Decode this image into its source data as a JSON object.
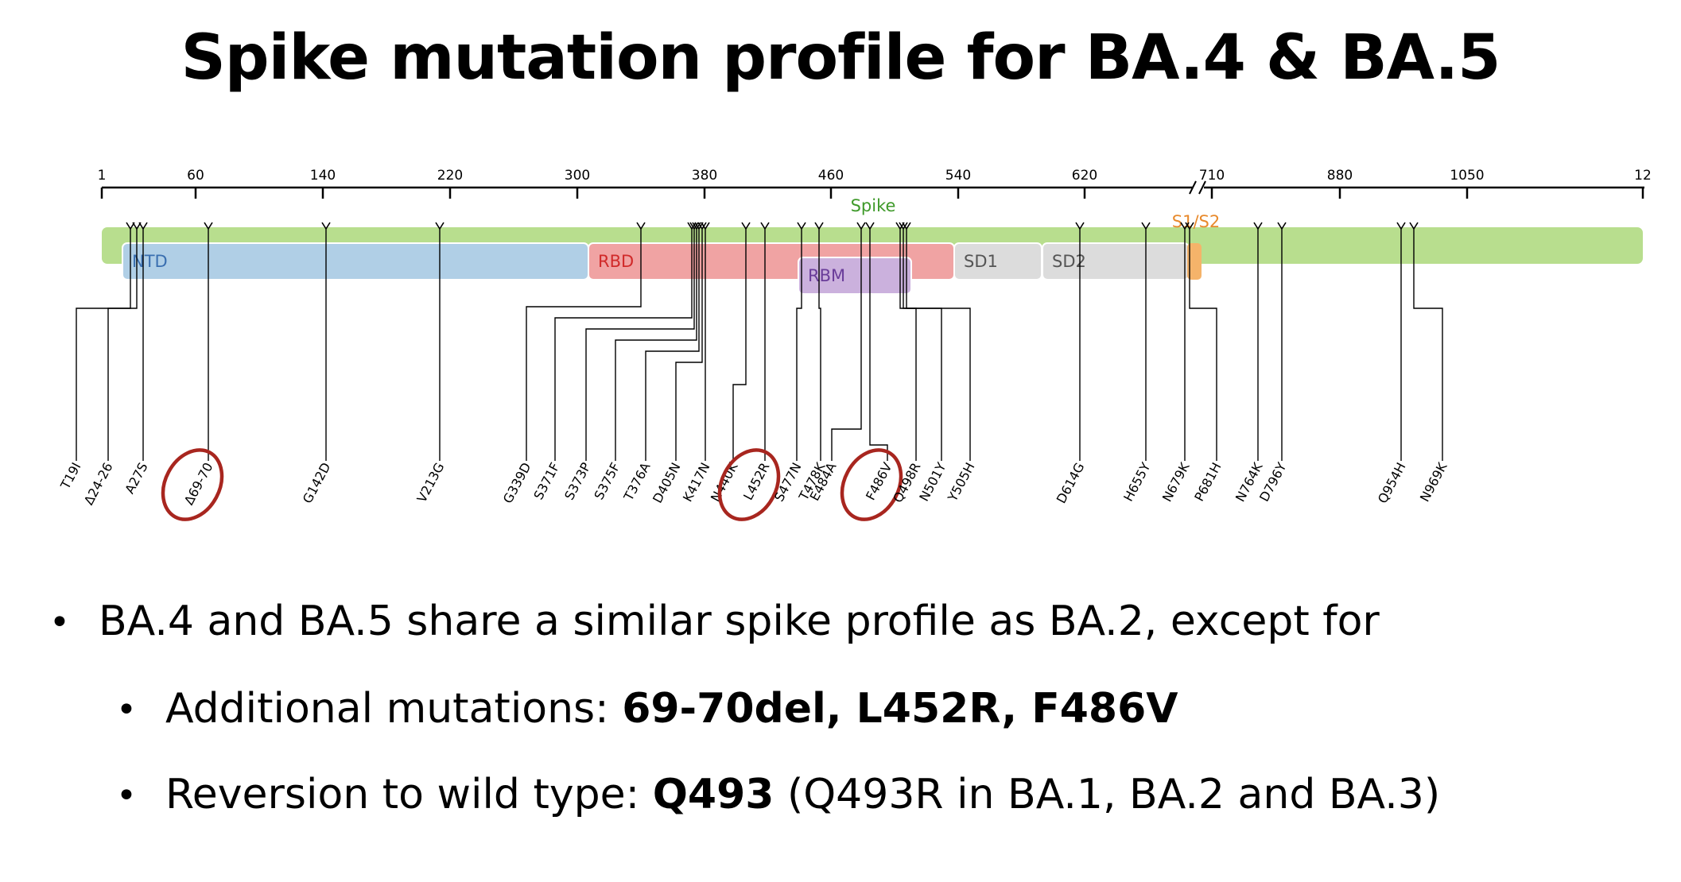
{
  "title": "Spike mutation profile for BA.4 & BA.5",
  "axis_ticks": [
    "1",
    "60",
    "140",
    "220",
    "300",
    "380",
    "460",
    "540",
    "620",
    "710",
    "880",
    "1050",
    "12"
  ],
  "spike_label": "Spike",
  "s1s2_label": "S1/S2",
  "domains": [
    {
      "label": "NTD",
      "color": "#b0cfe6",
      "text_color": "#3a6fb0"
    },
    {
      "label": "RBD",
      "color": "#f0a3a3",
      "text_color": "#d12a2a"
    },
    {
      "label": "RBM",
      "color": "#cbb1dd",
      "text_color": "#6a3d9a"
    },
    {
      "label": "SD1",
      "color": "#dcdcdc",
      "text_color": "#555555"
    },
    {
      "label": "SD2",
      "color": "#dcdcdc",
      "text_color": "#555555"
    }
  ],
  "colors": {
    "spike_bar": "#b8de8e",
    "spike_text": "#3f9a2a",
    "s1s2": "#f5b36a",
    "s1s2_text": "#e88a2c",
    "circle": "#a8261f"
  },
  "mutations": [
    {
      "label": "T19I",
      "circled": false
    },
    {
      "label": "Δ24-26",
      "circled": false
    },
    {
      "label": "A27S",
      "circled": false
    },
    {
      "label": "Δ69-70",
      "circled": true
    },
    {
      "label": "G142D",
      "circled": false
    },
    {
      "label": "V213G",
      "circled": false
    },
    {
      "label": "G339D",
      "circled": false
    },
    {
      "label": "S371F",
      "circled": false
    },
    {
      "label": "S373P",
      "circled": false
    },
    {
      "label": "S375F",
      "circled": false
    },
    {
      "label": "T376A",
      "circled": false
    },
    {
      "label": "D405N",
      "circled": false
    },
    {
      "label": "K417N",
      "circled": false
    },
    {
      "label": "N440K",
      "circled": false
    },
    {
      "label": "L452R",
      "circled": true
    },
    {
      "label": "S477N",
      "circled": false
    },
    {
      "label": "T478K",
      "circled": false
    },
    {
      "label": "E484A",
      "circled": false
    },
    {
      "label": "F486V",
      "circled": true
    },
    {
      "label": "Q498R",
      "circled": false
    },
    {
      "label": "N501Y",
      "circled": false
    },
    {
      "label": "Y505H",
      "circled": false
    },
    {
      "label": "D614G",
      "circled": false
    },
    {
      "label": "H655Y",
      "circled": false
    },
    {
      "label": "N679K",
      "circled": false
    },
    {
      "label": "P681H",
      "circled": false
    },
    {
      "label": "N764K",
      "circled": false
    },
    {
      "label": "D796Y",
      "circled": false
    },
    {
      "label": "Q954H",
      "circled": false
    },
    {
      "label": "N969K",
      "circled": false
    }
  ],
  "bullets": {
    "main": "BA.4 and BA.5 share a similar spike profile as BA.2, except for",
    "sub1_prefix": "Additional mutations: ",
    "sub1_bold": "69-70del, L452R, F486V",
    "sub2_prefix": "Reversion to wild type: ",
    "sub2_bold": "Q493",
    "sub2_suffix": " (Q493R in BA.1, BA.2 and BA.3)"
  }
}
